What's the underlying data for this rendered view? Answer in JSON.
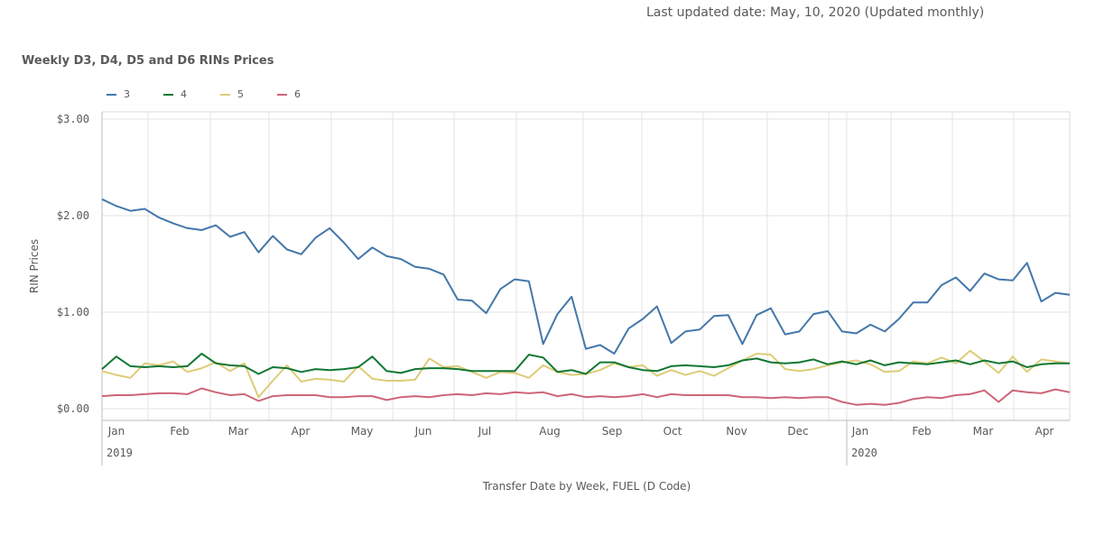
{
  "header": {
    "updated": "Last updated date: May, 10, 2020 (Updated monthly)"
  },
  "chart_data": {
    "type": "line",
    "title": "Weekly D3, D4, D5 and D6 RINs Prices",
    "xlabel": "Transfer Date by Week,  FUEL (D Code)",
    "ylabel": "RIN Prices",
    "ylim": [
      0,
      3
    ],
    "yticks": [
      {
        "value": 0,
        "label": "$0.00"
      },
      {
        "value": 1,
        "label": "$1.00"
      },
      {
        "value": 2,
        "label": "$2.00"
      },
      {
        "value": 3,
        "label": "$3.00"
      }
    ],
    "month_labels": [
      "Jan",
      "Feb",
      "Mar",
      "Apr",
      "May",
      "Jun",
      "Jul",
      "Aug",
      "Sep",
      "Oct",
      "Nov",
      "Dec",
      "Jan",
      "Feb",
      "Mar",
      "Apr"
    ],
    "year_labels": [
      "2019",
      "2020"
    ],
    "grid": true,
    "legend_position": "top-left",
    "series": [
      {
        "name": "3",
        "color": "#4477aa",
        "values": [
          2.17,
          2.1,
          2.05,
          2.07,
          1.98,
          1.92,
          1.87,
          1.85,
          1.9,
          1.78,
          1.83,
          1.62,
          1.79,
          1.65,
          1.6,
          1.77,
          1.87,
          1.72,
          1.55,
          1.67,
          1.58,
          1.55,
          1.47,
          1.45,
          1.39,
          1.13,
          1.12,
          0.99,
          1.24,
          1.34,
          1.32,
          0.67,
          0.98,
          1.16,
          0.62,
          0.66,
          0.57,
          0.83,
          0.93,
          1.06,
          0.68,
          0.8,
          0.82,
          0.96,
          0.97,
          0.67,
          0.97,
          1.04,
          0.77,
          0.8,
          0.98,
          1.01,
          0.8,
          0.78,
          0.87,
          0.8,
          0.93,
          1.1,
          1.1,
          1.28,
          1.36,
          1.22,
          1.4,
          1.34,
          1.33,
          1.51,
          1.11,
          1.2,
          1.18
        ]
      },
      {
        "name": "4",
        "color": "#117733",
        "values": [
          0.41,
          0.54,
          0.44,
          0.43,
          0.44,
          0.43,
          0.44,
          0.57,
          0.47,
          0.45,
          0.44,
          0.36,
          0.43,
          0.42,
          0.38,
          0.41,
          0.4,
          0.41,
          0.43,
          0.54,
          0.39,
          0.37,
          0.41,
          0.42,
          0.42,
          0.41,
          0.39,
          0.39,
          0.39,
          0.39,
          0.56,
          0.53,
          0.38,
          0.4,
          0.36,
          0.48,
          0.48,
          0.43,
          0.4,
          0.39,
          0.44,
          0.45,
          0.44,
          0.43,
          0.45,
          0.5,
          0.52,
          0.48,
          0.47,
          0.48,
          0.51,
          0.46,
          0.49,
          0.46,
          0.5,
          0.45,
          0.48,
          0.47,
          0.46,
          0.48,
          0.5,
          0.46,
          0.5,
          0.47,
          0.49,
          0.43,
          0.46,
          0.47,
          0.47
        ]
      },
      {
        "name": "5",
        "color": "#ddcc77",
        "values": [
          0.39,
          0.35,
          0.32,
          0.47,
          0.45,
          0.49,
          0.38,
          0.42,
          0.48,
          0.39,
          0.47,
          0.12,
          0.29,
          0.45,
          0.28,
          0.31,
          0.3,
          0.28,
          0.44,
          0.31,
          0.29,
          0.29,
          0.3,
          0.52,
          0.43,
          0.44,
          0.38,
          0.32,
          0.38,
          0.37,
          0.32,
          0.45,
          0.38,
          0.35,
          0.36,
          0.4,
          0.47,
          0.43,
          0.45,
          0.34,
          0.4,
          0.35,
          0.39,
          0.34,
          0.42,
          0.5,
          0.57,
          0.56,
          0.41,
          0.39,
          0.41,
          0.45,
          0.48,
          0.5,
          0.46,
          0.38,
          0.39,
          0.49,
          0.47,
          0.53,
          0.47,
          0.6,
          0.49,
          0.37,
          0.54,
          0.38,
          0.51,
          0.49,
          0.47
        ]
      },
      {
        "name": "6",
        "color": "#cc6677",
        "values": [
          0.13,
          0.14,
          0.14,
          0.15,
          0.16,
          0.16,
          0.15,
          0.21,
          0.17,
          0.14,
          0.15,
          0.08,
          0.13,
          0.14,
          0.14,
          0.14,
          0.12,
          0.12,
          0.13,
          0.13,
          0.09,
          0.12,
          0.13,
          0.12,
          0.14,
          0.15,
          0.14,
          0.16,
          0.15,
          0.17,
          0.16,
          0.17,
          0.13,
          0.15,
          0.12,
          0.13,
          0.12,
          0.13,
          0.15,
          0.12,
          0.15,
          0.14,
          0.14,
          0.14,
          0.14,
          0.12,
          0.12,
          0.11,
          0.12,
          0.11,
          0.12,
          0.12,
          0.07,
          0.04,
          0.05,
          0.04,
          0.06,
          0.1,
          0.12,
          0.11,
          0.14,
          0.15,
          0.19,
          0.07,
          0.19,
          0.17,
          0.16,
          0.2,
          0.17
        ]
      }
    ]
  }
}
